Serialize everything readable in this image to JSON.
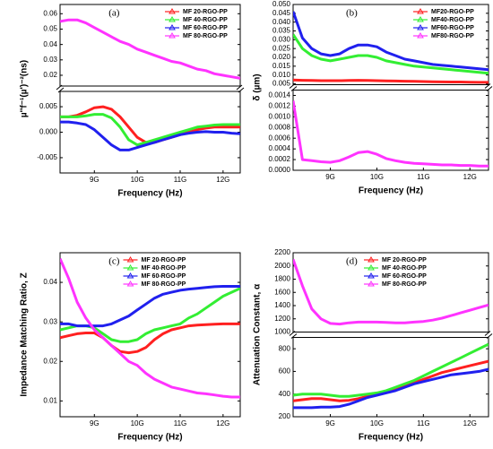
{
  "chart_data": [
    {
      "type": "line",
      "panel_label": "(a)",
      "xlabel": "Frequency (Hz)",
      "ylabel": "µ''f⁻¹(µ')⁻²(ns)",
      "legend": "upper right",
      "xlim": [
        8.2,
        12.4
      ],
      "xticks": [
        {
          "value": 9,
          "label": "9G"
        },
        {
          "value": 10,
          "label": "10G"
        },
        {
          "value": 11,
          "label": "11G"
        },
        {
          "value": 12,
          "label": "12G"
        }
      ],
      "x": [
        8.2,
        8.4,
        8.6,
        8.8,
        9.0,
        9.2,
        9.4,
        9.6,
        9.8,
        10.0,
        10.2,
        10.4,
        10.6,
        10.8,
        11.0,
        11.2,
        11.4,
        11.6,
        11.8,
        12.0,
        12.2,
        12.4
      ],
      "y_segments": [
        {
          "ylim": [
            -0.008,
            0.008
          ],
          "yticks": [
            {
              "value": -0.005,
              "label": "-0.005"
            },
            {
              "value": 0,
              "label": "0.000"
            },
            {
              "value": 0.005,
              "label": "0.005"
            }
          ]
        },
        {
          "ylim": [
            0.013,
            0.066
          ],
          "yticks": [
            0.02,
            0.03,
            0.04,
            0.05,
            0.06
          ]
        }
      ],
      "series": [
        {
          "name": "MF 20-RGO-PP",
          "color": "#ff2020",
          "values": [
            0.003,
            0.003,
            0.0033,
            0.004,
            0.0048,
            0.005,
            0.0045,
            0.003,
            0.001,
            -0.001,
            -0.002,
            -0.002,
            -0.0015,
            -0.001,
            -0.0005,
            0,
            0.0005,
            0.0008,
            0.001,
            0.001,
            0.001,
            0.001
          ]
        },
        {
          "name": "MF 40-RGO-PP",
          "color": "#33ee33",
          "values": [
            0.003,
            0.003,
            0.003,
            0.0032,
            0.0035,
            0.0035,
            0.0028,
            0.001,
            -0.0015,
            -0.0025,
            -0.002,
            -0.0015,
            -0.001,
            -0.0005,
            0,
            0.0005,
            0.001,
            0.0012,
            0.0014,
            0.0015,
            0.0015,
            0.0015
          ]
        },
        {
          "name": "MF 60-RGO-PP",
          "color": "#2020ee",
          "values": [
            0.002,
            0.002,
            0.0018,
            0.0015,
            0.0005,
            -0.001,
            -0.0025,
            -0.0035,
            -0.0035,
            -0.003,
            -0.0025,
            -0.002,
            -0.0015,
            -0.001,
            -0.0005,
            -0.0002,
            0,
            0.0001,
            0,
            0,
            -0.0002,
            -0.0003
          ]
        },
        {
          "name": "MF 80-RGO-PP",
          "color": "#ff33ff",
          "values": [
            0.055,
            0.056,
            0.056,
            0.054,
            0.051,
            0.048,
            0.045,
            0.042,
            0.04,
            0.037,
            0.035,
            0.033,
            0.031,
            0.029,
            0.028,
            0.026,
            0.024,
            0.023,
            0.021,
            0.02,
            0.019,
            0.018
          ]
        }
      ]
    },
    {
      "type": "line",
      "panel_label": "(b)",
      "xlabel": "Frequency (Hz)",
      "ylabel": "δ (µm)",
      "legend": "upper right",
      "xlim": [
        8.2,
        12.4
      ],
      "xticks": [
        {
          "value": 9,
          "label": "9G"
        },
        {
          "value": 10,
          "label": "10G"
        },
        {
          "value": 11,
          "label": "11G"
        },
        {
          "value": 12,
          "label": "12G"
        }
      ],
      "x": [
        8.2,
        8.4,
        8.6,
        8.8,
        9.0,
        9.2,
        9.4,
        9.6,
        9.8,
        10.0,
        10.2,
        10.4,
        10.6,
        10.8,
        11.0,
        11.2,
        11.4,
        11.6,
        11.8,
        12.0,
        12.2,
        12.4
      ],
      "y_segments": [
        {
          "ylim": [
            0,
            0.0015
          ],
          "yticks": [
            {
              "value": 0,
              "label": "0.0000"
            },
            {
              "value": 0.0002,
              "label": "0.0002"
            },
            {
              "value": 0.0004,
              "label": "0.0004"
            },
            {
              "value": 0.0006,
              "label": "0.0006"
            },
            {
              "value": 0.0008,
              "label": "0.0008"
            },
            {
              "value": 0.001,
              "label": "0.0010"
            },
            {
              "value": 0.0012,
              "label": "0.0012"
            },
            {
              "value": 0.0014,
              "label": "0.0014"
            }
          ]
        },
        {
          "ylim": [
            0.0045,
            0.05
          ],
          "yticks": [
            0.005,
            {
              "value": 0.01,
              "label": "0.010"
            },
            0.015,
            {
              "value": 0.02,
              "label": "0.020"
            },
            0.025,
            {
              "value": 0.03,
              "label": "0.030"
            },
            0.035,
            {
              "value": 0.04,
              "label": "0.040"
            },
            0.045,
            {
              "value": 0.05,
              "label": "0.050"
            }
          ]
        }
      ],
      "series": [
        {
          "name": "MF20-RGO-PP",
          "color": "#ff2020",
          "values": [
            0.0072,
            0.007,
            0.0069,
            0.0068,
            0.0068,
            0.0068,
            0.0069,
            0.007,
            0.0069,
            0.0068,
            0.0067,
            0.0066,
            0.0065,
            0.0064,
            0.0063,
            0.0062,
            0.0061,
            0.006,
            0.006,
            0.0059,
            0.0058,
            0.0058
          ]
        },
        {
          "name": "MF40-RGO-PP",
          "color": "#33ee33",
          "values": [
            0.033,
            0.025,
            0.021,
            0.019,
            0.018,
            0.019,
            0.02,
            0.021,
            0.021,
            0.02,
            0.018,
            0.017,
            0.016,
            0.015,
            0.0145,
            0.014,
            0.0135,
            0.013,
            0.0125,
            0.012,
            0.0115,
            0.011
          ]
        },
        {
          "name": "MF60-RGO-PP",
          "color": "#2020ee",
          "values": [
            0.046,
            0.031,
            0.025,
            0.022,
            0.021,
            0.022,
            0.025,
            0.027,
            0.027,
            0.026,
            0.023,
            0.021,
            0.019,
            0.018,
            0.017,
            0.016,
            0.0155,
            0.015,
            0.0145,
            0.014,
            0.0135,
            0.013
          ]
        },
        {
          "name": "MF80-RGO-PP",
          "color": "#ff33ff",
          "values": [
            0.0013,
            0.0002,
            0.00018,
            0.00016,
            0.00015,
            0.00018,
            0.00025,
            0.00033,
            0.00035,
            0.0003,
            0.00022,
            0.00018,
            0.00015,
            0.00013,
            0.00012,
            0.00011,
            0.0001,
            0.0001,
            9e-05,
            9e-05,
            8e-05,
            8e-05
          ]
        }
      ]
    },
    {
      "type": "line",
      "panel_label": "(c)",
      "xlabel": "Frequency (Hz)",
      "ylabel": "Impedance Matching Ratio, Z",
      "legend": "upper center",
      "xlim": [
        8.2,
        12.4
      ],
      "xticks": [
        {
          "value": 9,
          "label": "9G"
        },
        {
          "value": 10,
          "label": "10G"
        },
        {
          "value": 11,
          "label": "11G"
        },
        {
          "value": 12,
          "label": "12G"
        }
      ],
      "x": [
        8.2,
        8.4,
        8.6,
        8.8,
        9.0,
        9.2,
        9.4,
        9.6,
        9.8,
        10.0,
        10.2,
        10.4,
        10.6,
        10.8,
        11.0,
        11.2,
        11.4,
        11.6,
        11.8,
        12.0,
        12.2,
        12.4
      ],
      "ylim": [
        0.006,
        0.0475
      ],
      "yticks": [
        0.01,
        0.02,
        0.03,
        0.04
      ],
      "series": [
        {
          "name": "MF 20-RGO-PP",
          "color": "#ff2020",
          "values": [
            0.026,
            0.0265,
            0.027,
            0.0272,
            0.0272,
            0.026,
            0.024,
            0.0225,
            0.0222,
            0.0225,
            0.0235,
            0.0255,
            0.027,
            0.028,
            0.0285,
            0.029,
            0.0292,
            0.0293,
            0.0294,
            0.0295,
            0.0295,
            0.0295
          ]
        },
        {
          "name": "MF 40-RGO-PP",
          "color": "#33ee33",
          "values": [
            0.028,
            0.0285,
            0.029,
            0.029,
            0.0285,
            0.027,
            0.0255,
            0.025,
            0.025,
            0.0255,
            0.027,
            0.028,
            0.0285,
            0.029,
            0.0295,
            0.031,
            0.032,
            0.0335,
            0.035,
            0.0365,
            0.0375,
            0.0385
          ]
        },
        {
          "name": "MF 60-RGO-PP",
          "color": "#2020ee",
          "values": [
            0.0295,
            0.0295,
            0.029,
            0.029,
            0.029,
            0.029,
            0.0295,
            0.0305,
            0.0315,
            0.033,
            0.0345,
            0.036,
            0.037,
            0.0375,
            0.038,
            0.0383,
            0.0385,
            0.0387,
            0.0389,
            0.039,
            0.039,
            0.039
          ]
        },
        {
          "name": "MF 80-RGO-PP",
          "color": "#ff33ff",
          "values": [
            0.046,
            0.041,
            0.035,
            0.031,
            0.028,
            0.026,
            0.024,
            0.022,
            0.02,
            0.019,
            0.017,
            0.0155,
            0.0145,
            0.0135,
            0.013,
            0.0125,
            0.012,
            0.0118,
            0.0115,
            0.0112,
            0.011,
            0.011
          ]
        }
      ]
    },
    {
      "type": "line",
      "panel_label": "(d)",
      "xlabel": "Frequency (Hz)",
      "ylabel": "Attenuation Constant, α",
      "legend": "upper center",
      "xlim": [
        8.2,
        12.4
      ],
      "xticks": [
        {
          "value": 9,
          "label": "9G"
        },
        {
          "value": 10,
          "label": "10G"
        },
        {
          "value": 11,
          "label": "11G"
        },
        {
          "value": 12,
          "label": "12G"
        }
      ],
      "x": [
        8.2,
        8.4,
        8.6,
        8.8,
        9.0,
        9.2,
        9.4,
        9.6,
        9.8,
        10.0,
        10.2,
        10.4,
        10.6,
        10.8,
        11.0,
        11.2,
        11.4,
        11.6,
        11.8,
        12.0,
        12.2,
        12.4
      ],
      "y_segments": [
        {
          "ylim": [
            200,
            900
          ],
          "yticks": [
            200,
            400,
            600,
            800
          ]
        },
        {
          "ylim": [
            1000,
            2200
          ],
          "yticks": [
            1000,
            1200,
            1400,
            1600,
            1800,
            2000,
            2200
          ]
        }
      ],
      "series": [
        {
          "name": "MF 20-RGO-PP",
          "color": "#ff2020",
          "values": [
            340,
            350,
            360,
            360,
            350,
            340,
            345,
            360,
            380,
            400,
            420,
            440,
            470,
            500,
            530,
            560,
            590,
            610,
            630,
            650,
            670,
            690
          ]
        },
        {
          "name": "MF 40-RGO-PP",
          "color": "#33ee33",
          "values": [
            390,
            400,
            400,
            400,
            390,
            380,
            380,
            390,
            400,
            410,
            430,
            460,
            490,
            520,
            560,
            600,
            640,
            680,
            720,
            760,
            800,
            840
          ]
        },
        {
          "name": "MF 60-RGO-PP",
          "color": "#2020ee",
          "values": [
            280,
            280,
            280,
            285,
            285,
            290,
            310,
            340,
            370,
            390,
            410,
            430,
            460,
            490,
            510,
            530,
            550,
            570,
            580,
            590,
            600,
            620
          ]
        },
        {
          "name": "MF 80-RGO-PP",
          "color": "#ff33ff",
          "values": [
            2100,
            1700,
            1350,
            1200,
            1130,
            1120,
            1140,
            1150,
            1150,
            1150,
            1145,
            1140,
            1140,
            1150,
            1160,
            1180,
            1210,
            1250,
            1290,
            1330,
            1370,
            1410
          ]
        }
      ]
    }
  ]
}
